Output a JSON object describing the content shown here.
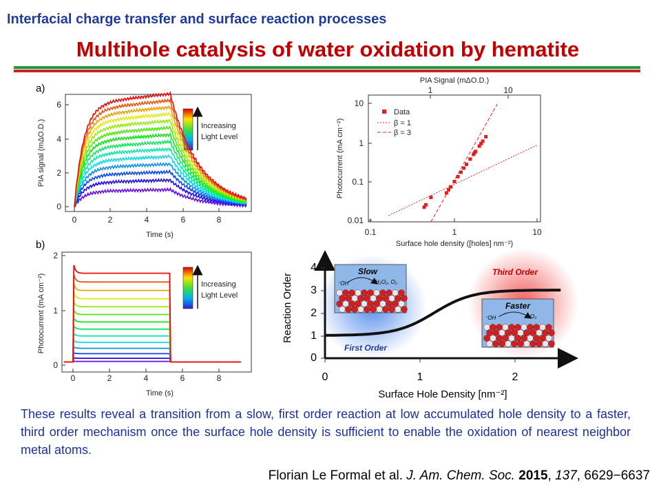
{
  "header": {
    "topic": "Interfacial charge transfer and surface reaction processes",
    "title": "Multihole catalysis of water oxidation by hematite"
  },
  "figures": {
    "a": {
      "label": "a)",
      "ylabel": "PIA signal (mΔO.D.)",
      "xlabel": "Time (s)",
      "xticks": [
        "0",
        "2",
        "4",
        "6",
        "8"
      ],
      "yticks": [
        "0",
        "2",
        "4",
        "6"
      ],
      "legend": [
        "Increasing",
        "Light Level"
      ]
    },
    "b": {
      "label": "b)",
      "ylabel": "Photocurrent (mA cm⁻²)",
      "xlabel": "Time (s)",
      "xticks": [
        "0",
        "2",
        "4",
        "6",
        "8"
      ],
      "yticks": [
        "0",
        "1",
        "2"
      ],
      "legend": [
        "Increasing",
        "Light Level"
      ]
    },
    "c": {
      "top_label": "PIA Signal (mΔO.D.)",
      "top_ticks": [
        "1",
        "10"
      ],
      "ylabel": "Photocurrent (mA cm⁻²)",
      "yticks": [
        "10",
        "1",
        "0.1",
        "0.01"
      ],
      "xlabel": "Surface hole density ([holes] nm⁻²)",
      "xticks": [
        "0.1",
        "1",
        "10"
      ],
      "legend": [
        "Data",
        "β = 1",
        "β = 3"
      ]
    },
    "d": {
      "ylabel": "Reaction Order",
      "yticks": [
        "0",
        "1",
        "2",
        "3",
        "4"
      ],
      "xlabel": "Surface Hole Density [nm⁻²]",
      "xticks": [
        "0",
        "1",
        "2"
      ],
      "slow": "Slow",
      "faster": "Faster",
      "first_order": "First Order",
      "third_order": "Third Order",
      "oh": "⁻OH",
      "products_slow": "H₂O₂, O₂",
      "products_fast": "O₂"
    }
  },
  "caption": "These results reveal a transition from a slow, first order reaction at low accumulated hole density to a faster, third order mechanism once the surface hole density is sufficient to enable the oxidation of nearest neighbor metal atoms.",
  "citation": {
    "authors": "Florian Le Formal et al.",
    "journal": "J. Am. Chem. Soc.",
    "year": "2015",
    "volume": "137",
    "pages": "6629−6637"
  }
}
